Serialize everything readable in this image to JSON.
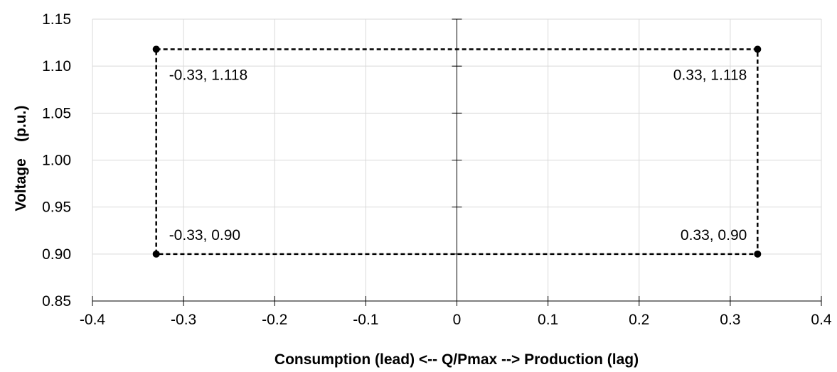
{
  "chart_data": {
    "type": "scatter",
    "xlabel": "Consumption (lead) <-- Q/Pmax --> Production (lag)",
    "ylabel": "Voltage    (p.u.)",
    "xlim": [
      -0.4,
      0.4
    ],
    "ylim": [
      0.85,
      1.15
    ],
    "x_ticks": [
      "-0.4",
      "-0.3",
      "-0.2",
      "-0.1",
      "0",
      "0.1",
      "0.2",
      "0.3",
      "0.4"
    ],
    "x_tick_values": [
      -0.4,
      -0.3,
      -0.2,
      -0.1,
      0,
      0.1,
      0.2,
      0.3,
      0.4
    ],
    "y_ticks": [
      "0.85",
      "0.90",
      "0.95",
      "1.00",
      "1.05",
      "1.10",
      "1.15"
    ],
    "y_tick_values": [
      0.85,
      0.9,
      0.95,
      1.0,
      1.05,
      1.1,
      1.15
    ],
    "grid": true,
    "series": [
      {
        "line_style": "dashed",
        "closed": true,
        "color": "#000000",
        "points": [
          {
            "x": -0.33,
            "y": 1.118,
            "label": "-0.33, 1.118"
          },
          {
            "x": 0.33,
            "y": 1.118,
            "label": "0.33, 1.118"
          },
          {
            "x": 0.33,
            "y": 0.9,
            "label": "0.33, 0.90"
          },
          {
            "x": -0.33,
            "y": 0.9,
            "label": "-0.33, 0.90"
          }
        ]
      }
    ]
  }
}
